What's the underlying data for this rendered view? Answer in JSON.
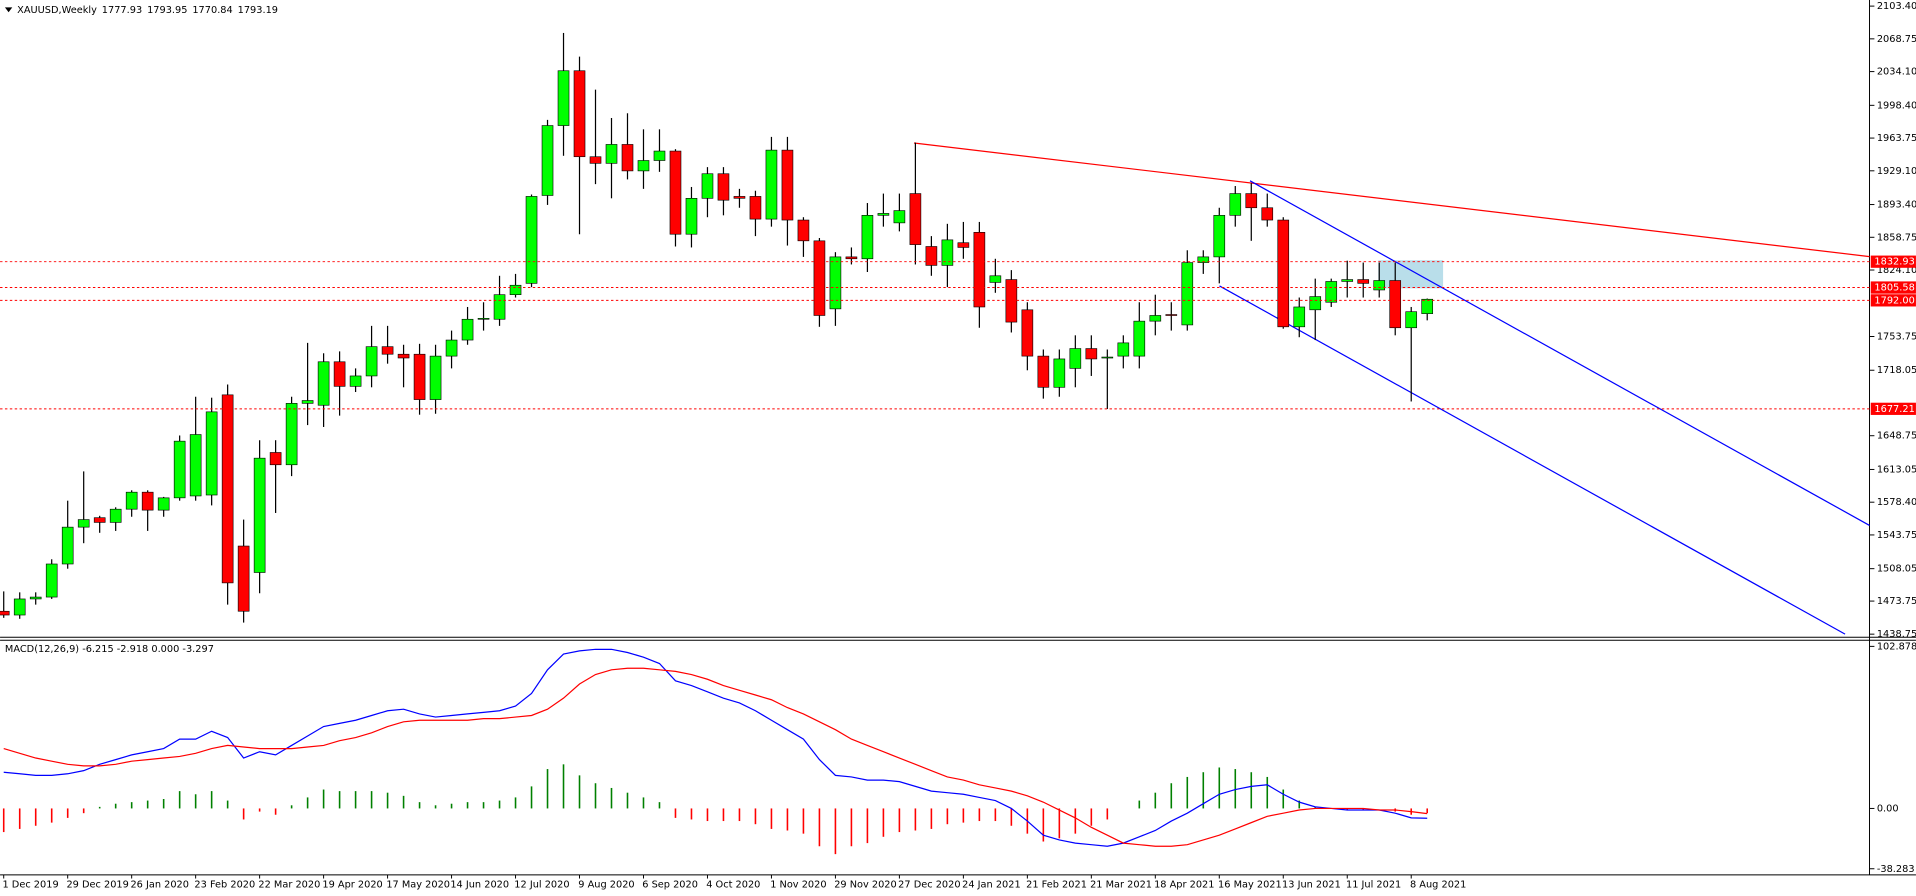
{
  "chart_data": [
    {
      "type": "candlestick",
      "title": "XAUUSD,Weekly",
      "categories": [
        "1 Dec 2019",
        null,
        null,
        null,
        "29 Dec 2019",
        null,
        null,
        null,
        "26 Jan 2020",
        null,
        null,
        null,
        "23 Feb 2020",
        null,
        null,
        null,
        "22 Mar 2020",
        null,
        null,
        null,
        "19 Apr 2020",
        null,
        null,
        null,
        "17 May 2020",
        null,
        null,
        null,
        "14 Jun 2020",
        null,
        null,
        null,
        "12 Jul 2020",
        null,
        null,
        null,
        "9 Aug 2020",
        null,
        null,
        null,
        "6 Sep 2020",
        null,
        null,
        null,
        "4 Oct 2020",
        null,
        null,
        null,
        "1 Nov 2020",
        null,
        null,
        null,
        "29 Nov 2020",
        null,
        null,
        null,
        "27 Dec 2020",
        null,
        null,
        null,
        "24 Jan 2021",
        null,
        null,
        null,
        "21 Feb 2021",
        null,
        null,
        null,
        "21 Mar 2021",
        null,
        null,
        null,
        "18 Apr 2021",
        null,
        null,
        null,
        "16 May 2021",
        null,
        null,
        null,
        "13 Jun 2021",
        null,
        null,
        null,
        "11 Jul 2021",
        null,
        null,
        null,
        "8 Aug 2021",
        null
      ],
      "open": [
        1463,
        1459,
        1476,
        1478,
        1513,
        1552,
        1562,
        1557,
        1571,
        1589,
        1570,
        1583,
        1585,
        1586,
        1692,
        1532,
        1504,
        1631,
        1618,
        1683,
        1681,
        1727,
        1701,
        1712,
        1743,
        1735,
        1735,
        1687,
        1733,
        1750,
        1772,
        1772,
        1798,
        1810,
        1903,
        1977,
        2035,
        1944,
        1937,
        1957,
        1929,
        1940,
        1950,
        1862,
        1900,
        1926,
        1902,
        1902,
        1878,
        1951,
        1877,
        1855,
        1783,
        1838,
        1836,
        1882,
        1874,
        1905,
        1849,
        1829,
        1853,
        1864,
        1811,
        1814,
        1782,
        1733,
        1700,
        1720,
        1741,
        1732,
        1733,
        1733,
        1770,
        1777,
        1766,
        1832,
        1838,
        1882,
        1905,
        1890,
        1877,
        1764,
        1782,
        1790,
        1812,
        1814,
        1803,
        1813,
        1763,
        1777.93
      ],
      "high": [
        1484,
        1483,
        1483,
        1518,
        1580,
        1611,
        1564,
        1573,
        1591,
        1591,
        1584,
        1649,
        1690,
        1689,
        1703,
        1560,
        1644,
        1644,
        1690,
        1747,
        1736,
        1738,
        1720,
        1765,
        1765,
        1745,
        1746,
        1745,
        1760,
        1785,
        1790,
        1818,
        1820,
        1904,
        1983,
        2075,
        2050,
        2015,
        1985,
        1990,
        1973,
        1973,
        1952,
        1912,
        1933,
        1933,
        1910,
        1908,
        1965,
        1965,
        1880,
        1858,
        1843,
        1848,
        1895,
        1905,
        1905,
        1959,
        1860,
        1873,
        1875,
        1875,
        1836,
        1824,
        1790,
        1740,
        1740,
        1755,
        1755,
        1740,
        1755,
        1790,
        1798,
        1790,
        1845,
        1845,
        1890,
        1913,
        1916,
        1905,
        1880,
        1795,
        1815,
        1815,
        1834,
        1832,
        1832,
        1832,
        1785,
        1793.95
      ],
      "low": [
        1456,
        1455,
        1470,
        1476,
        1508,
        1535,
        1546,
        1548,
        1563,
        1548,
        1563,
        1580,
        1580,
        1575,
        1470,
        1451,
        1482,
        1567,
        1606,
        1660,
        1658,
        1670,
        1695,
        1700,
        1725,
        1700,
        1671,
        1672,
        1720,
        1745,
        1760,
        1765,
        1795,
        1806,
        1893,
        1945,
        1862,
        1915,
        1900,
        1920,
        1910,
        1928,
        1849,
        1848,
        1880,
        1882,
        1890,
        1860,
        1870,
        1850,
        1838,
        1764,
        1765,
        1830,
        1822,
        1870,
        1865,
        1830,
        1818,
        1806,
        1836,
        1763,
        1800,
        1758,
        1718,
        1688,
        1690,
        1700,
        1712,
        1677,
        1720,
        1720,
        1755,
        1760,
        1760,
        1820,
        1810,
        1870,
        1855,
        1870,
        1762,
        1753,
        1750,
        1785,
        1795,
        1795,
        1795,
        1755,
        1685,
        1770.84
      ],
      "close": [
        1459,
        1476,
        1478,
        1513,
        1552,
        1560,
        1557,
        1571,
        1589,
        1570,
        1583,
        1643,
        1650,
        1674,
        1493,
        1463,
        1625,
        1618,
        1683,
        1686,
        1727,
        1701,
        1712,
        1743,
        1735,
        1731,
        1687,
        1733,
        1750,
        1772,
        1773,
        1798,
        1808,
        1902,
        1977,
        2035,
        1944,
        1937,
        1957,
        1929,
        1940,
        1950,
        1862,
        1900,
        1926,
        1898,
        1900,
        1878,
        1951,
        1877,
        1855,
        1776,
        1838,
        1836,
        1882,
        1884,
        1887,
        1851,
        1829,
        1856,
        1848,
        1785,
        1818,
        1769,
        1733,
        1700,
        1730,
        1741,
        1730,
        1732,
        1747,
        1770,
        1776,
        1776,
        1832,
        1838,
        1882,
        1905,
        1890,
        1877,
        1764,
        1785,
        1796,
        1812,
        1814,
        1810,
        1813,
        1763,
        1780,
        1793.19
      ],
      "up_color": "#00ff00",
      "down_color": "#ff0000",
      "ylim": [
        1438.75,
        2103.4
      ],
      "yticks": [
        {
          "value": 2103.4,
          "label": "2103.40"
        },
        2068.75,
        {
          "value": 2034.1,
          "label": "2034.10"
        },
        {
          "value": 1998.4,
          "label": "1998.40"
        },
        1963.75,
        {
          "value": 1929.1,
          "label": "1929.10"
        },
        {
          "value": 1893.4,
          "label": "1893.40"
        },
        1858.75,
        {
          "value": 1824.1,
          "label": "1824.10"
        },
        1753.75,
        1718.05,
        1648.75,
        1613.05,
        {
          "value": 1578.4,
          "label": "1578.40"
        },
        1543.75,
        1508.05,
        1473.75,
        1438.75
      ],
      "levels": [
        1832.93,
        1805.58,
        {
          "value": 1792,
          "label": "1792.00"
        },
        1677.21
      ],
      "level_color": "#ff0000"
    },
    {
      "type": "macd",
      "title": "MACD(12,26,9) -6.215 -2.918 0.000 -3.297",
      "ylim": [
        -38.283,
        102.878
      ],
      "yticks": [
        102.878,
        {
          "value": 0,
          "label": "0.00"
        },
        -38.283
      ],
      "histogram": {
        "up_color": "#008000",
        "down_color": "#ff0000",
        "values": [
          -15,
          -13,
          -11,
          -9,
          -6,
          -3,
          1,
          3,
          4,
          5,
          6,
          11,
          9,
          11,
          5,
          -7,
          -2,
          -4,
          2,
          7,
          12,
          11,
          11,
          11,
          10,
          8,
          4,
          2,
          3,
          4,
          4,
          5,
          7,
          14,
          25,
          28,
          21,
          16,
          13,
          10,
          7,
          4,
          -6,
          -7,
          -8,
          -8,
          -8,
          -10,
          -13,
          -14,
          -16,
          -24,
          -29,
          -24,
          -22,
          -18,
          -15,
          -14,
          -13,
          -10,
          -9,
          -8,
          -8,
          -11,
          -16,
          -21,
          -19,
          -16,
          -11,
          -7,
          0,
          5,
          10,
          16,
          20,
          23,
          26,
          25,
          23,
          20,
          12,
          5,
          1,
          0,
          -1,
          -1,
          0,
          -2,
          -4,
          -2.918
        ]
      },
      "series": [
        {
          "color": "#0000ff",
          "values": [
            23,
            22,
            21,
            21,
            22,
            24,
            28,
            31,
            34,
            36,
            38,
            44,
            44,
            49,
            45,
            32,
            36,
            34,
            40,
            46,
            52,
            54,
            56,
            59,
            62,
            63,
            60,
            58,
            59,
            60,
            61,
            62,
            65,
            73,
            88,
            98,
            100,
            101,
            101,
            99,
            96,
            92,
            81,
            78,
            74,
            70,
            67,
            62,
            56,
            50,
            44,
            31,
            21,
            20,
            18,
            18,
            17,
            14,
            11,
            10,
            9,
            7,
            5,
            0,
            -8,
            -17,
            -20,
            -22,
            -23,
            -24,
            -22,
            -18,
            -14,
            -8,
            -3,
            3,
            9,
            12,
            14,
            15,
            9,
            4,
            1,
            0,
            -1,
            -1,
            -1,
            -3,
            -6,
            -6.215
          ]
        },
        {
          "color": "#ff0000",
          "values": [
            38,
            35,
            32,
            30,
            28,
            27,
            27,
            28,
            30,
            31,
            32,
            33,
            35,
            38,
            40,
            39,
            38,
            38,
            38,
            39,
            40,
            43,
            45,
            48,
            52,
            55,
            56,
            56,
            56,
            56,
            57,
            57,
            58,
            59,
            63,
            70,
            79,
            85,
            88,
            89,
            89,
            88,
            87,
            85,
            82,
            78,
            75,
            72,
            69,
            64,
            60,
            55,
            50,
            44,
            40,
            36,
            32,
            28,
            24,
            20,
            18,
            15,
            13,
            11,
            8,
            4,
            -1,
            -6,
            -12,
            -17,
            -22,
            -23,
            -24,
            -24,
            -23,
            -20,
            -17,
            -13,
            -9,
            -5,
            -3,
            -1,
            0,
            0,
            0,
            0,
            -1,
            -1,
            -2,
            -3.297
          ]
        }
      ]
    }
  ]
}
